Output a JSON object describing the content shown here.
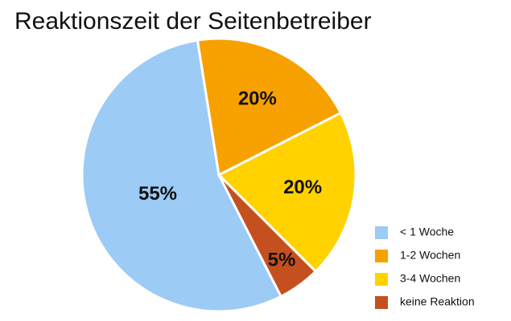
{
  "chart_data": {
    "type": "pie",
    "title": "Reaktionszeit der Seitenbetreiber",
    "categories": [
      "< 1 Woche",
      "1-2 Wochen",
      "3-4 Wochen",
      "keine Reaktion"
    ],
    "values": [
      55,
      20,
      20,
      5
    ],
    "value_labels": [
      "55%",
      "20%",
      "20%",
      "5%"
    ],
    "colors": [
      "#9ccbf5",
      "#f7a100",
      "#ffd200",
      "#c5501f"
    ],
    "legend": "bottom-right"
  }
}
